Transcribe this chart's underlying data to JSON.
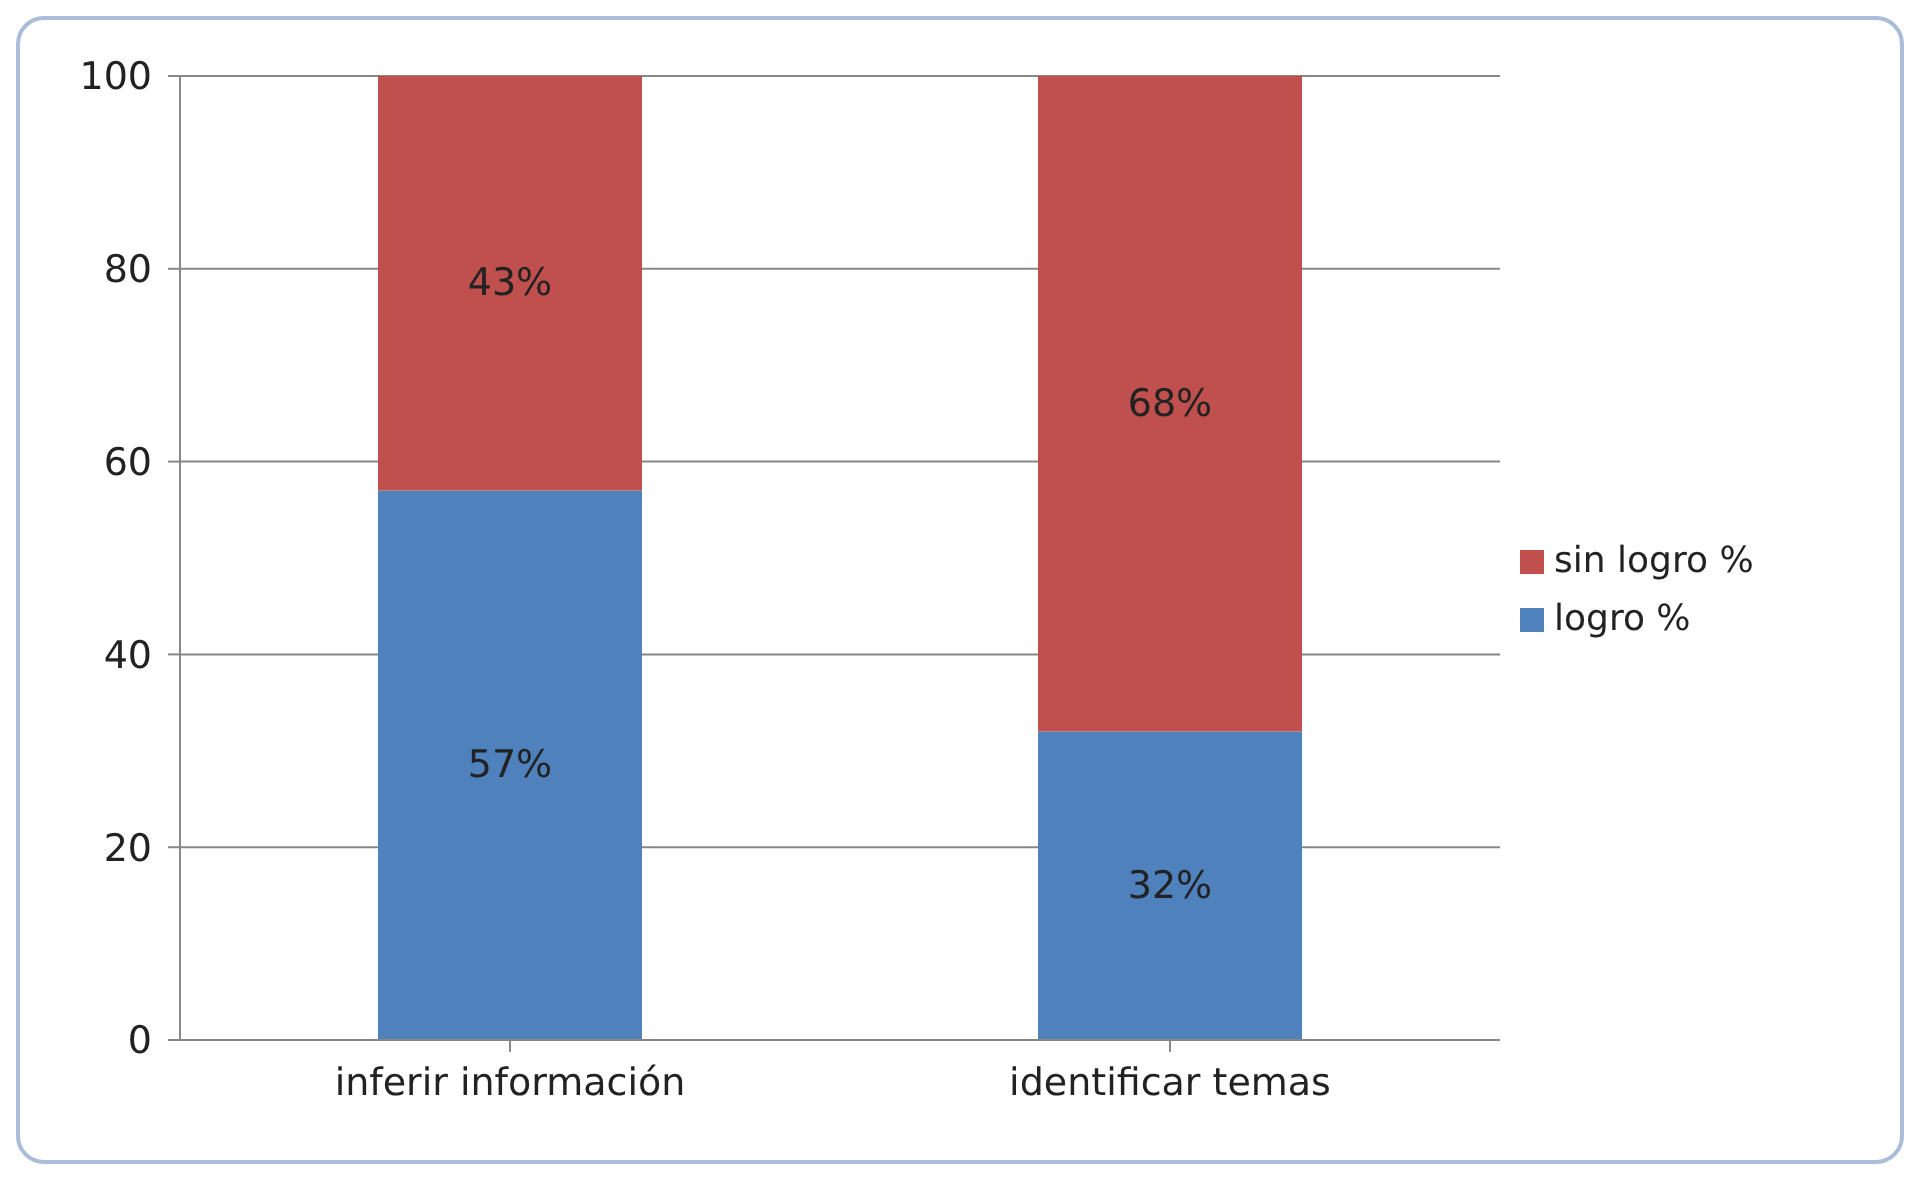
{
  "chart_data": {
    "type": "bar",
    "stacked": true,
    "categories": [
      "inferir información",
      "identificar temas"
    ],
    "series": [
      {
        "name": "logro %",
        "color": "#4f81bd",
        "values": [
          57,
          32
        ],
        "value_labels": [
          "57%",
          "32%"
        ]
      },
      {
        "name": "sin logro %",
        "color": "#c0504d",
        "values": [
          43,
          68
        ],
        "value_labels": [
          "43%",
          "68%"
        ]
      }
    ],
    "ylim": [
      0,
      100
    ],
    "yticks": [
      0,
      20,
      40,
      60,
      80,
      100
    ],
    "grid": "y",
    "legend": "right"
  }
}
